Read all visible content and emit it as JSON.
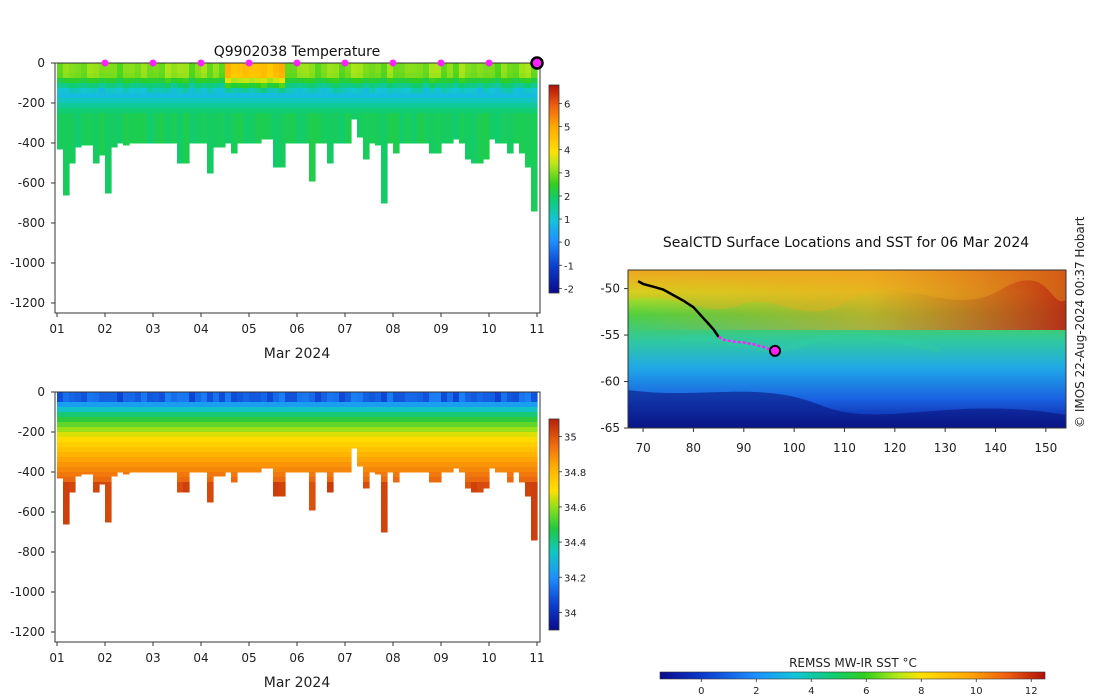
{
  "chart_data": [
    {
      "type": "heatmap",
      "title": "Q9902038  Temperature",
      "xlabel": "Mar 2024",
      "ylabel": "",
      "x_ticks": [
        "01",
        "02",
        "03",
        "04",
        "05",
        "06",
        "07",
        "08",
        "09",
        "10",
        "11"
      ],
      "y_ticks": [
        "0",
        "-200",
        "-400",
        "-600",
        "-800",
        "-1000",
        "-1200"
      ],
      "ylim": [
        -1250,
        0
      ],
      "colorbar": {
        "ticks": [
          "-2",
          "-1",
          "0",
          "1",
          "2",
          "3",
          "4",
          "5",
          "6"
        ],
        "range": [
          -2.2,
          6.8
        ]
      },
      "daily_markers_color": "#ff22ff",
      "latest_marker_color": "#ff22ff",
      "profile_depths_m": [
        430,
        660,
        500,
        420,
        410,
        410,
        500,
        460,
        650,
        420,
        400,
        410,
        400,
        400,
        400,
        400,
        400,
        400,
        400,
        400,
        500,
        500,
        400,
        400,
        400,
        550,
        420,
        420,
        400,
        450,
        400,
        400,
        400,
        400,
        380,
        380,
        520,
        520,
        400,
        400,
        400,
        400,
        590,
        400,
        400,
        500,
        400,
        400,
        400,
        280,
        370,
        480,
        400,
        410,
        700,
        400,
        450,
        400,
        400,
        400,
        400,
        400,
        450,
        450,
        400,
        400,
        380,
        400,
        480,
        500,
        500,
        480,
        380,
        400,
        400,
        450,
        400,
        450,
        520,
        740
      ]
    },
    {
      "type": "heatmap",
      "title": "",
      "xlabel": "Mar 2024",
      "ylabel": "",
      "x_ticks": [
        "01",
        "02",
        "03",
        "04",
        "05",
        "06",
        "07",
        "08",
        "09",
        "10",
        "11"
      ],
      "y_ticks": [
        "0",
        "-200",
        "-400",
        "-600",
        "-800",
        "-1000",
        "-1200"
      ],
      "ylim": [
        -1250,
        0
      ],
      "colorbar": {
        "ticks": [
          "34",
          "34.2",
          "34.4",
          "34.6",
          "34.8",
          "35"
        ],
        "range": [
          33.9,
          35.1
        ]
      }
    },
    {
      "type": "heatmap",
      "title": "SealCTD Surface Locations and SST for 06 Mar 2024",
      "xlabel": "",
      "ylabel": "",
      "x_ticks": [
        "70",
        "80",
        "90",
        "100",
        "110",
        "120",
        "130",
        "140",
        "150"
      ],
      "y_ticks": [
        "-50",
        "-55",
        "-60",
        "-65"
      ],
      "xlim": [
        67,
        154
      ],
      "ylim": [
        -65,
        -48
      ],
      "colorbar": {
        "label": "REMSS MW-IR SST °C",
        "ticks": [
          "0",
          "2",
          "4",
          "6",
          "8",
          "10",
          "12"
        ],
        "range": [
          -1.5,
          12.5
        ]
      },
      "track_lon": [
        69,
        70,
        72,
        74,
        76,
        78,
        80,
        81,
        82,
        83,
        84,
        85,
        86,
        88,
        90,
        92,
        94,
        96
      ],
      "track_lat": [
        -49.2,
        -49.5,
        -49.8,
        -50.1,
        -50.7,
        -51.3,
        -52.0,
        -52.6,
        -53.2,
        -53.8,
        -54.4,
        -55.2,
        -55.5,
        -55.7,
        -55.8,
        -56.0,
        -56.3,
        -56.7
      ],
      "track_recent_from_index": 11,
      "latest_position": {
        "lon": 96.2,
        "lat": -56.7
      }
    }
  ],
  "credit": "© IMOS 22-Aug-2024 00:37 Hobart"
}
